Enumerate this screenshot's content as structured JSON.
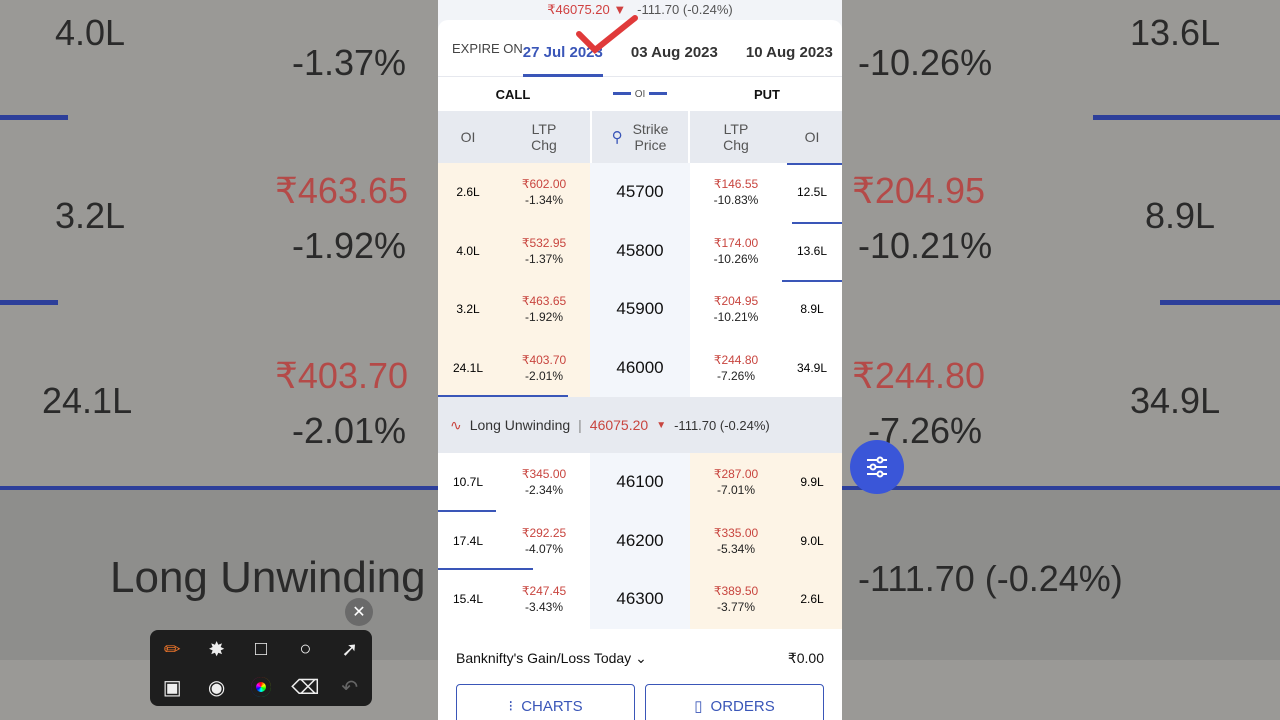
{
  "top": {
    "price": "₹46075.20",
    "arrow": "▼",
    "change": "-111.70 (-0.24%)"
  },
  "expiry": {
    "label": "EXPIRE ON",
    "dates": [
      "27 Jul 2023",
      "03 Aug 2023",
      "10 Aug 2023"
    ],
    "active": 0
  },
  "sides": {
    "call": "CALL",
    "oi": "OI",
    "put": "PUT"
  },
  "headers": {
    "oi": "OI",
    "ltp": "LTP",
    "chg": "Chg",
    "strike": "Strike",
    "price": "Price"
  },
  "rows_above": [
    {
      "call_oi": "2.6L",
      "call_ltp": "₹602.00",
      "call_chg": "-1.34%",
      "strike": "45700",
      "put_ltp": "₹146.55",
      "put_chg": "-10.83%",
      "put_oi": "12.5L"
    },
    {
      "call_oi": "4.0L",
      "call_ltp": "₹532.95",
      "call_chg": "-1.37%",
      "strike": "45800",
      "put_ltp": "₹174.00",
      "put_chg": "-10.26%",
      "put_oi": "13.6L"
    },
    {
      "call_oi": "3.2L",
      "call_ltp": "₹463.65",
      "call_chg": "-1.92%",
      "strike": "45900",
      "put_ltp": "₹204.95",
      "put_chg": "-10.21%",
      "put_oi": "8.9L"
    },
    {
      "call_oi": "24.1L",
      "call_ltp": "₹403.70",
      "call_chg": "-2.01%",
      "strike": "46000",
      "put_ltp": "₹244.80",
      "put_chg": "-7.26%",
      "put_oi": "34.9L"
    }
  ],
  "spot": {
    "label": "Long Unwinding",
    "sep": "|",
    "price": "46075.20",
    "change": "-111.70 (-0.24%)"
  },
  "rows_below": [
    {
      "call_oi": "10.7L",
      "call_ltp": "₹345.00",
      "call_chg": "-2.34%",
      "strike": "46100",
      "put_ltp": "₹287.00",
      "put_chg": "-7.01%",
      "put_oi": "9.9L"
    },
    {
      "call_oi": "17.4L",
      "call_ltp": "₹292.25",
      "call_chg": "-4.07%",
      "strike": "46200",
      "put_ltp": "₹335.00",
      "put_chg": "-5.34%",
      "put_oi": "9.0L"
    },
    {
      "call_oi": "15.4L",
      "call_ltp": "₹247.45",
      "call_chg": "-3.43%",
      "strike": "46300",
      "put_ltp": "₹389.50",
      "put_chg": "-3.77%",
      "put_oi": "2.6L"
    }
  ],
  "gain": {
    "label": "Banknifty's Gain/Loss Today",
    "value": "₹0.00"
  },
  "buttons": {
    "charts": "CHARTS",
    "orders": "ORDERS"
  },
  "colors": {
    "accent": "#3a56b8",
    "negative": "#c8453f",
    "itm": "#fdf4e6"
  }
}
